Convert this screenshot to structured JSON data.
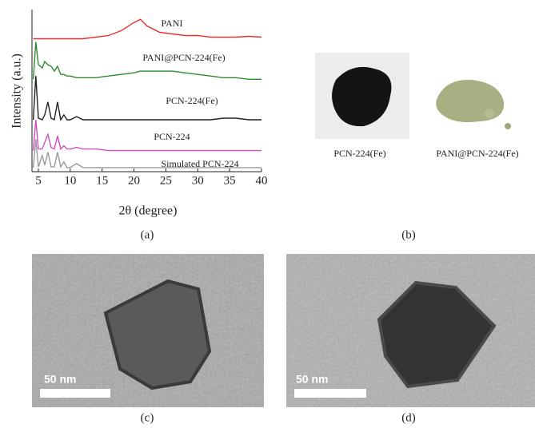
{
  "chart_data": {
    "type": "line",
    "x_label": "2θ (degree)",
    "y_label": "Intensity (a.u.)",
    "x": [
      4.2,
      4.6,
      5,
      5.6,
      6,
      6.5,
      7,
      7.5,
      8,
      8.5,
      9,
      9.5,
      10,
      11,
      12,
      14,
      16,
      18,
      20,
      21,
      22,
      24,
      26,
      28,
      30,
      32,
      34,
      36,
      38,
      40
    ],
    "series": [
      {
        "name": "PANI",
        "color": "#e8312f",
        "values": [
          82,
          82,
          82,
          82,
          82,
          82,
          82,
          82,
          82,
          82,
          82,
          82,
          82,
          82,
          82,
          83,
          84,
          87,
          92,
          94,
          90,
          86,
          85,
          84,
          84,
          83,
          83,
          83,
          83.5,
          83
        ]
      },
      {
        "name": "PANI@PCN-224(Fe)",
        "color": "#2e8b2e",
        "values": [
          57,
          80,
          66,
          64,
          68,
          66,
          65,
          62,
          65,
          60,
          60,
          59,
          59,
          58,
          58,
          58,
          59,
          60,
          61,
          62,
          62,
          62,
          62,
          61,
          60,
          59,
          58,
          58,
          57,
          57
        ]
      },
      {
        "name": "PCN-224(Fe)",
        "color": "#222222",
        "values": [
          32,
          59,
          33,
          32,
          35,
          43,
          33,
          32,
          43,
          32,
          35,
          32,
          32,
          34,
          32,
          32,
          32,
          32,
          32,
          32,
          32,
          32,
          32,
          32,
          32,
          32,
          33,
          33,
          32,
          32
        ]
      },
      {
        "name": "PCN-224",
        "color": "#d04fc0",
        "values": [
          13,
          32,
          14,
          14,
          18,
          23,
          15,
          14,
          22,
          14,
          16,
          14,
          14,
          15,
          14,
          14,
          13,
          13,
          13,
          13,
          13,
          13,
          13,
          13,
          13,
          13,
          13,
          13,
          13,
          13
        ]
      },
      {
        "name": "Simulated PCN-224",
        "color": "#9a9a9a",
        "values": [
          2.5,
          20,
          3,
          10,
          4,
          12,
          3,
          3,
          12,
          3,
          6,
          2.5,
          2.5,
          5,
          2.5,
          2.5,
          2.5,
          2.5,
          2.5,
          2.5,
          2.5,
          2.5,
          2.5,
          2.5,
          2.5,
          2.5,
          2.5,
          2.5,
          2.5,
          2.5
        ]
      }
    ],
    "xlim": [
      4,
      40
    ],
    "xticks": [
      5,
      10,
      15,
      20,
      25,
      30,
      35,
      40
    ],
    "ylim": [
      0,
      100
    ]
  },
  "panel_labels": [
    "(a)",
    "(b)",
    "(c)",
    "(d)"
  ],
  "photos": {
    "labels": [
      "PCN-224(Fe)",
      "PANI@PCN-224(Fe)"
    ]
  },
  "tem": {
    "scale_labels": [
      "50 nm",
      "50 nm"
    ]
  }
}
